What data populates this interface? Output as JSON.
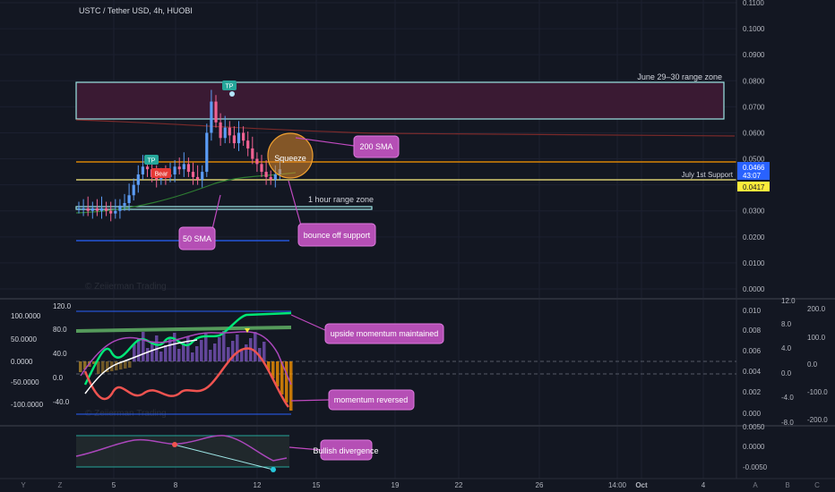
{
  "header": {
    "symbol_title": "USTC / Tether USD, 4h, HUOBI"
  },
  "watermarks": {
    "main": "© Zeiierman Trading",
    "momentum": "© Zeiierman Trading"
  },
  "price_axis": {
    "ticks": [
      "0.1100",
      "0.1000",
      "0.0900",
      "0.0800",
      "0.0700",
      "0.0600",
      "0.0500",
      "0.0400",
      "0.0300",
      "0.0200",
      "0.0100",
      "0.0000"
    ],
    "tick_values": [
      0.11,
      0.1,
      0.09,
      0.08,
      0.07,
      0.06,
      0.05,
      0.04,
      0.03,
      0.02,
      0.01,
      0.0
    ],
    "last_price": "0.0466",
    "countdown": "43:07",
    "support_price": "0.0417",
    "colors": {
      "last_price_bg": "#2962ff",
      "support_bg": "#ffeb3b"
    }
  },
  "time_axis": {
    "labels": [
      "5",
      "8",
      "12",
      "15",
      "19",
      "22",
      "26",
      "14:00",
      "Oct",
      "4"
    ],
    "bold": [
      "Oct"
    ],
    "bottom_buttons_left": [
      "Y",
      "Z"
    ],
    "bottom_buttons_right": [
      "A",
      "B",
      "C"
    ]
  },
  "annotations": {
    "june_range": "June 29–30 range zone",
    "tp_top": "TP",
    "tp_left": "TP",
    "bear": "Bear",
    "sma200": "200 SMA",
    "squeeze": "Squeeze",
    "july_support": "July 1st Support",
    "hour_range": "1 hour range zone",
    "sma50": "50 SMA",
    "bounce": "bounce off support",
    "upside": "upside momentum maintained",
    "reversed": "momentum reversed",
    "bullish_div": "Bullish divergence"
  },
  "momentum_pane": {
    "left_axis": [
      "100.0000",
      "50.0000",
      "0.0000",
      "-50.0000",
      "-100.0000"
    ],
    "left_inner_axis": [
      "120.0",
      "80.0",
      "40.0",
      "0.0",
      "-40.0"
    ],
    "right_axis_1": [
      "0.010",
      "0.008",
      "0.006",
      "0.004",
      "0.002",
      "0.000"
    ],
    "right_axis_2": [
      "12.0",
      "8.0",
      "4.0",
      "0.0",
      "-4.0",
      "-8.0"
    ],
    "right_axis_3": [
      "200.0",
      "100.0",
      "0.0",
      "-100.0",
      "-200.0"
    ]
  },
  "divergence_pane": {
    "right_axis": [
      "0.0050",
      "0.0000",
      "-0.0050"
    ]
  },
  "chart_data": [
    {
      "type": "candlestick",
      "title": "USTC / Tether USD, 4h, HUOBI",
      "ylim": [
        0.0,
        0.11
      ],
      "x_labels": [
        "5",
        "8",
        "12",
        "15",
        "19",
        "22",
        "26",
        "14:00",
        "Oct",
        "4"
      ],
      "close_path": [
        0.031,
        0.031,
        0.03,
        0.031,
        0.03,
        0.031,
        0.03,
        0.029,
        0.03,
        0.032,
        0.033,
        0.036,
        0.04,
        0.044,
        0.047,
        0.046,
        0.043,
        0.042,
        0.044,
        0.043,
        0.044,
        0.047,
        0.046,
        0.048,
        0.045,
        0.043,
        0.042,
        0.045,
        0.06,
        0.072,
        0.064,
        0.058,
        0.062,
        0.059,
        0.056,
        0.06,
        0.057,
        0.054,
        0.05,
        0.048,
        0.045,
        0.043,
        0.042,
        0.044,
        0.046
      ],
      "levels": {
        "last_price": 0.0466,
        "july_1st_support": 0.0417,
        "june_29_30_range_zone": [
          0.0655,
          0.0795
        ],
        "one_hour_range_zone": [
          0.0308,
          0.0318
        ],
        "orange_level": 0.049
      }
    },
    {
      "type": "line",
      "name": "momentum",
      "ylim": [
        -100,
        120
      ],
      "notes": [
        "upside momentum maintained",
        "momentum reversed"
      ]
    },
    {
      "type": "line",
      "name": "divergence",
      "ylim": [
        -0.005,
        0.005
      ],
      "notes": [
        "Bullish divergence"
      ]
    }
  ]
}
